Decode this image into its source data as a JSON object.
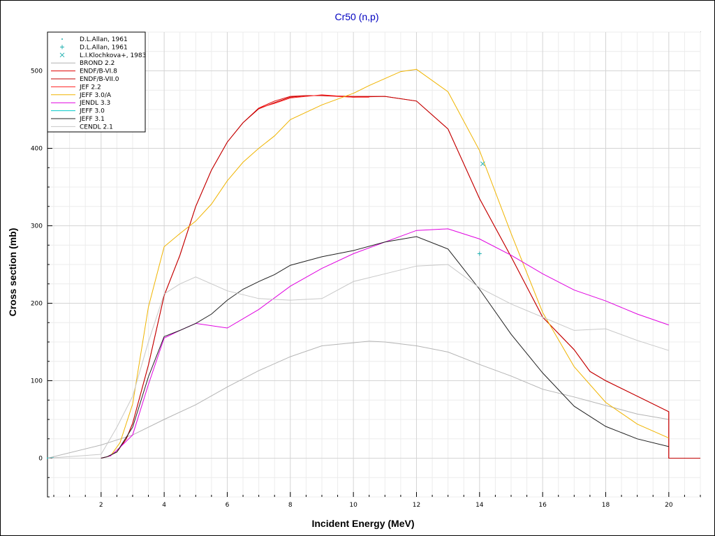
{
  "chart_data": {
    "type": "line",
    "title": "Cr50 (n,p)",
    "xlabel": "Incident Energy (MeV)",
    "ylabel": "Cross section (mb)",
    "xlim": [
      0.3,
      21
    ],
    "ylim": [
      -50,
      550
    ],
    "x_ticks": [
      2,
      4,
      6,
      8,
      10,
      12,
      14,
      16,
      18,
      20
    ],
    "y_ticks": [
      0,
      100,
      200,
      300,
      400,
      500
    ],
    "grid": true,
    "legend_position": "top-left",
    "series": [
      {
        "name": "D.L.Allan, 1961",
        "kind": "marker",
        "marker": "dot",
        "color": "#20b0b0",
        "points": [
          [
            0.3,
            0
          ]
        ]
      },
      {
        "name": "D.L.Allan, 1961",
        "kind": "marker",
        "marker": "plus",
        "color": "#20b0b0",
        "points": [
          [
            14.0,
            264
          ]
        ]
      },
      {
        "name": "L.I.Klochkova+, 1983",
        "kind": "marker",
        "marker": "x",
        "color": "#20b0b0",
        "points": [
          [
            14.1,
            380
          ]
        ]
      },
      {
        "name": "BROND 2.2",
        "kind": "line",
        "color": "#b4b4b4",
        "points": [
          [
            0.3,
            0
          ],
          [
            2,
            17
          ],
          [
            3,
            30
          ],
          [
            4,
            50
          ],
          [
            5,
            69
          ],
          [
            6,
            92
          ],
          [
            7,
            113
          ],
          [
            8,
            131
          ],
          [
            9,
            145
          ],
          [
            10,
            149
          ],
          [
            10.5,
            151
          ],
          [
            11,
            150
          ],
          [
            12,
            145
          ],
          [
            13,
            137
          ],
          [
            14,
            121
          ],
          [
            15,
            106
          ],
          [
            16,
            89
          ],
          [
            17,
            79
          ],
          [
            18,
            68
          ],
          [
            19,
            57
          ],
          [
            20,
            50
          ]
        ]
      },
      {
        "name": "ENDF/B-VI.8",
        "kind": "line",
        "color": "#e00000",
        "points": [
          [
            2,
            0
          ],
          [
            2.2,
            2
          ],
          [
            2.5,
            8
          ],
          [
            2.8,
            25
          ],
          [
            3,
            45
          ],
          [
            3.5,
            120
          ],
          [
            4,
            210
          ],
          [
            4.5,
            262
          ],
          [
            5,
            325
          ],
          [
            5.5,
            372
          ],
          [
            6,
            408
          ],
          [
            6.5,
            433
          ],
          [
            7,
            452
          ],
          [
            7.5,
            461
          ],
          [
            8,
            467
          ],
          [
            8.5,
            468
          ],
          [
            9,
            468
          ],
          [
            10,
            466
          ],
          [
            11,
            467
          ],
          [
            12,
            461
          ],
          [
            13,
            425
          ],
          [
            14,
            335
          ],
          [
            15,
            260
          ],
          [
            16,
            182
          ],
          [
            17,
            140
          ],
          [
            17.5,
            112
          ],
          [
            18,
            100
          ],
          [
            19,
            80
          ],
          [
            20,
            60
          ],
          [
            20,
            0
          ],
          [
            21,
            0
          ]
        ]
      },
      {
        "name": "ENDF/B-VII.0",
        "kind": "line",
        "color": "#c00000",
        "points": [
          [
            2,
            0
          ],
          [
            2.2,
            2
          ],
          [
            2.5,
            8
          ],
          [
            2.8,
            25
          ],
          [
            3,
            45
          ],
          [
            3.5,
            120
          ],
          [
            4,
            210
          ],
          [
            4.5,
            262
          ],
          [
            5,
            325
          ],
          [
            5.5,
            372
          ],
          [
            6,
            408
          ],
          [
            6.5,
            433
          ],
          [
            7,
            451
          ],
          [
            7.5,
            459
          ],
          [
            8,
            466
          ],
          [
            8.5,
            468
          ],
          [
            9,
            468
          ],
          [
            10,
            467
          ],
          [
            11,
            467
          ],
          [
            12,
            461
          ],
          [
            13,
            425
          ],
          [
            14,
            335
          ],
          [
            15,
            260
          ],
          [
            16,
            182
          ],
          [
            17,
            140
          ],
          [
            17.5,
            112
          ],
          [
            18,
            100
          ],
          [
            19,
            80
          ],
          [
            20,
            60
          ],
          [
            20,
            0
          ],
          [
            21,
            0
          ]
        ]
      },
      {
        "name": "JEF 2.2",
        "kind": "line",
        "color": "#ff2020",
        "points": [
          [
            7,
            452
          ],
          [
            7.5,
            458
          ],
          [
            8,
            465
          ],
          [
            9,
            469
          ],
          [
            10,
            466
          ],
          [
            10.5,
            466
          ]
        ]
      },
      {
        "name": "JEFF 3.0/A",
        "kind": "line",
        "color": "#f0b400",
        "points": [
          [
            2,
            0
          ],
          [
            2.3,
            3
          ],
          [
            2.6,
            20
          ],
          [
            3,
            70
          ],
          [
            3.5,
            195
          ],
          [
            4,
            273
          ],
          [
            4.5,
            290
          ],
          [
            5,
            306
          ],
          [
            5.5,
            328
          ],
          [
            6,
            358
          ],
          [
            6.5,
            382
          ],
          [
            7,
            400
          ],
          [
            7.5,
            416
          ],
          [
            8,
            437
          ],
          [
            9,
            456
          ],
          [
            10,
            471
          ],
          [
            10.5,
            481
          ],
          [
            11,
            490
          ],
          [
            11.5,
            499
          ],
          [
            12,
            502
          ],
          [
            13,
            473
          ],
          [
            14,
            397
          ],
          [
            15,
            290
          ],
          [
            16,
            188
          ],
          [
            17,
            118
          ],
          [
            18,
            72
          ],
          [
            19,
            44
          ],
          [
            20,
            26
          ]
        ]
      },
      {
        "name": "JENDL 3.3",
        "kind": "line",
        "color": "#e000e0",
        "points": [
          [
            2,
            0
          ],
          [
            2.3,
            3
          ],
          [
            2.6,
            14
          ],
          [
            3,
            30
          ],
          [
            3.5,
            95
          ],
          [
            4,
            155
          ],
          [
            4.5,
            165
          ],
          [
            5,
            174
          ],
          [
            6,
            168
          ],
          [
            7,
            192
          ],
          [
            8,
            222
          ],
          [
            9,
            245
          ],
          [
            10,
            264
          ],
          [
            11,
            279
          ],
          [
            12,
            294
          ],
          [
            13,
            296
          ],
          [
            14,
            283
          ],
          [
            15,
            262
          ],
          [
            16,
            238
          ],
          [
            17,
            217
          ],
          [
            18,
            203
          ],
          [
            19,
            186
          ],
          [
            20,
            172
          ]
        ]
      },
      {
        "name": "JEFF 3.0",
        "kind": "line",
        "color": "#00c8c8",
        "points": [
          [
            0.3,
            0
          ],
          [
            0.5,
            1
          ]
        ]
      },
      {
        "name": "JEFF 3.1",
        "kind": "line",
        "color": "#202020",
        "points": [
          [
            2,
            0
          ],
          [
            2.2,
            2
          ],
          [
            2.5,
            8
          ],
          [
            3,
            40
          ],
          [
            3.5,
            105
          ],
          [
            4,
            157
          ],
          [
            4.5,
            165
          ],
          [
            5,
            174
          ],
          [
            5.5,
            186
          ],
          [
            6,
            204
          ],
          [
            6.5,
            218
          ],
          [
            7,
            228
          ],
          [
            7.5,
            237
          ],
          [
            8,
            249
          ],
          [
            9,
            260
          ],
          [
            10,
            268
          ],
          [
            11,
            279
          ],
          [
            12,
            286
          ],
          [
            13,
            270
          ],
          [
            14,
            218
          ],
          [
            15,
            160
          ],
          [
            16,
            110
          ],
          [
            17,
            67
          ],
          [
            18,
            41
          ],
          [
            19,
            25
          ],
          [
            20,
            15
          ]
        ]
      },
      {
        "name": "CENDL 2.1",
        "kind": "line",
        "color": "#c8c8c8",
        "points": [
          [
            0.3,
            0
          ],
          [
            2,
            5
          ],
          [
            2.5,
            40
          ],
          [
            3,
            80
          ],
          [
            3.5,
            150
          ],
          [
            4,
            212
          ],
          [
            4.5,
            225
          ],
          [
            5,
            234
          ],
          [
            6,
            216
          ],
          [
            7,
            206
          ],
          [
            8,
            204
          ],
          [
            9,
            206
          ],
          [
            10,
            228
          ],
          [
            11,
            238
          ],
          [
            12,
            248
          ],
          [
            13,
            250
          ],
          [
            14,
            220
          ],
          [
            15,
            199
          ],
          [
            16,
            182
          ],
          [
            17,
            165
          ],
          [
            18,
            167
          ],
          [
            19,
            152
          ],
          [
            20,
            139
          ]
        ]
      }
    ]
  }
}
